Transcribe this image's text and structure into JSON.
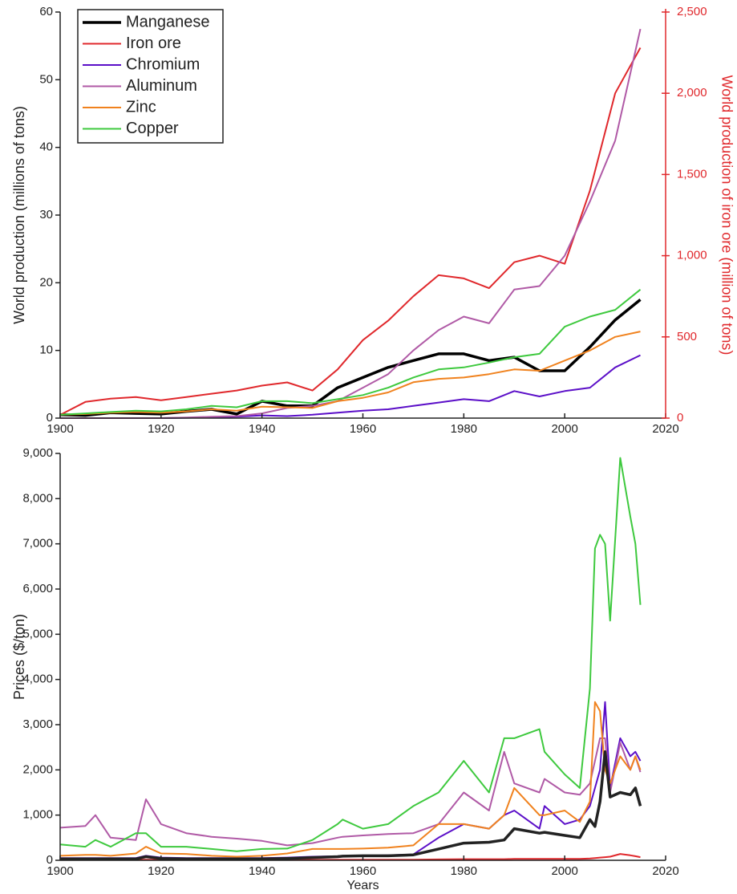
{
  "chart_data": [
    {
      "type": "line",
      "y_label": "World production (millions of tons)",
      "y2_label": "World production of iron ore (million of tons)",
      "x": [
        1900,
        1905,
        1910,
        1915,
        1920,
        1925,
        1930,
        1935,
        1940,
        1945,
        1950,
        1955,
        1960,
        1965,
        1970,
        1975,
        1980,
        1985,
        1990,
        1995,
        2000,
        2005,
        2010,
        2015
      ],
      "xlim": [
        1900,
        2020
      ],
      "xticks": [
        1900,
        1920,
        1940,
        1960,
        1980,
        2000,
        2020
      ],
      "ylim": [
        0,
        60
      ],
      "yticks": [
        0,
        10,
        20,
        30,
        40,
        50,
        60
      ],
      "y2lim": [
        0,
        2500
      ],
      "y2ticks": [
        0,
        500,
        {
          "value": 1000,
          "label": "1,000"
        },
        {
          "value": 1500,
          "label": "1,500"
        },
        {
          "value": 2000,
          "label": "2,000"
        },
        {
          "value": 2500,
          "label": "2,500"
        }
      ],
      "legend": "upper left",
      "series": [
        {
          "name": "Manganese",
          "color": "#000000",
          "width": 3.5,
          "values": [
            0.5,
            0.4,
            0.8,
            0.7,
            0.6,
            1.0,
            1.3,
            0.6,
            2.5,
            1.8,
            1.8,
            4.5,
            6.0,
            7.5,
            8.5,
            9.5,
            9.5,
            8.5,
            9.0,
            7.0,
            7.0,
            10.5,
            14.5,
            17.5
          ]
        },
        {
          "name": "Iron ore",
          "color": "#e0282c",
          "width": 2,
          "axis": "y2",
          "values": [
            20,
            100,
            120,
            130,
            110,
            130,
            150,
            170,
            200,
            220,
            170,
            300,
            480,
            600,
            750,
            880,
            860,
            800,
            960,
            1000,
            950,
            1400,
            2000,
            2280
          ]
        },
        {
          "name": "Chromium",
          "color": "#5b0fc8",
          "width": 2,
          "values": [
            0,
            0,
            0,
            0,
            0,
            0.05,
            0.1,
            0.2,
            0.4,
            0.3,
            0.5,
            0.8,
            1.1,
            1.3,
            1.8,
            2.3,
            2.8,
            2.5,
            4,
            3.2,
            4,
            4.5,
            7.5,
            9.3
          ]
        },
        {
          "name": "Aluminum",
          "color": "#b05aa6",
          "width": 2,
          "values": [
            0,
            0,
            0,
            0,
            0,
            0.1,
            0.2,
            0.3,
            0.7,
            1.5,
            1.8,
            2.5,
            4.5,
            6.5,
            10,
            13,
            15,
            14,
            19,
            19.5,
            24,
            32,
            41,
            57.5
          ]
        },
        {
          "name": "Zinc",
          "color": "#f0821e",
          "width": 2,
          "values": [
            0.5,
            0.6,
            0.8,
            0.9,
            0.8,
            1.0,
            1.3,
            1.1,
            1.7,
            1.6,
            1.5,
            2.5,
            3.0,
            3.8,
            5.3,
            5.8,
            6.0,
            6.5,
            7.2,
            7.0,
            8.5,
            10,
            12,
            12.8
          ]
        },
        {
          "name": "Copper",
          "color": "#3ec93e",
          "width": 2,
          "values": [
            0.5,
            0.7,
            0.9,
            1.1,
            1.0,
            1.3,
            1.8,
            1.6,
            2.5,
            2.5,
            2.2,
            2.8,
            3.4,
            4.5,
            6.0,
            7.2,
            7.5,
            8.2,
            9.0,
            9.5,
            13.5,
            15,
            16,
            19
          ]
        }
      ]
    },
    {
      "type": "line",
      "x_label": "Years",
      "y_label": "Prices ($/ton)",
      "x": [
        1900,
        1905,
        1907,
        1910,
        1915,
        1917,
        1920,
        1925,
        1930,
        1935,
        1940,
        1945,
        1950,
        1955,
        1956,
        1960,
        1965,
        1970,
        1975,
        1980,
        1985,
        1988,
        1990,
        1995,
        1996,
        2000,
        2003,
        2005,
        2006,
        2007,
        2008,
        2009,
        2011,
        2013,
        2014,
        2015
      ],
      "xlim": [
        1900,
        2020
      ],
      "xticks": [
        1900,
        1920,
        1940,
        1960,
        1980,
        2000,
        2020
      ],
      "ylim": [
        0,
        9000
      ],
      "yticks": [
        0,
        {
          "value": 1000,
          "label": "1,000"
        },
        {
          "value": 2000,
          "label": "2,000"
        },
        {
          "value": 3000,
          "label": "3,000"
        },
        {
          "value": 4000,
          "label": "4,000"
        },
        {
          "value": 5000,
          "label": "5,000"
        },
        {
          "value": 6000,
          "label": "6,000"
        },
        {
          "value": 7000,
          "label": "7,000"
        },
        {
          "value": 8000,
          "label": "8,000"
        },
        {
          "value": 9000,
          "label": "9,000"
        }
      ],
      "series": [
        {
          "color": "#e0282c",
          "width": 2,
          "values": [
            10,
            10,
            10,
            10,
            10,
            15,
            10,
            10,
            10,
            10,
            10,
            10,
            10,
            15,
            15,
            15,
            15,
            15,
            20,
            25,
            25,
            25,
            30,
            30,
            30,
            30,
            30,
            40,
            50,
            60,
            70,
            80,
            140,
            110,
            90,
            70
          ]
        },
        {
          "color": "#5b0fc8",
          "width": 2,
          "values": [
            50,
            50,
            50,
            50,
            50,
            100,
            60,
            50,
            50,
            50,
            50,
            60,
            80,
            90,
            100,
            100,
            110,
            130,
            500,
            800,
            700,
            1000,
            1100,
            700,
            1200,
            800,
            900,
            1200,
            1600,
            2000,
            3500,
            1600,
            2700,
            2300,
            2400,
            2200
          ]
        },
        {
          "color": "#b05aa6",
          "width": 2,
          "values": [
            720,
            760,
            1000,
            500,
            450,
            1350,
            800,
            600,
            520,
            480,
            430,
            330,
            380,
            500,
            520,
            550,
            580,
            600,
            800,
            1500,
            1100,
            2400,
            1700,
            1500,
            1800,
            1500,
            1450,
            1700,
            2200,
            2700,
            2700,
            1500,
            2600,
            2000,
            2300,
            1950
          ]
        },
        {
          "color": "#f0821e",
          "width": 2,
          "values": [
            100,
            120,
            120,
            100,
            150,
            300,
            150,
            140,
            100,
            80,
            100,
            150,
            250,
            250,
            250,
            260,
            280,
            330,
            800,
            800,
            700,
            1000,
            1600,
            1000,
            1000,
            1100,
            850,
            1300,
            3500,
            3300,
            2000,
            1700,
            2300,
            2000,
            2300,
            2000
          ]
        },
        {
          "color": "#3ec93e",
          "width": 2,
          "values": [
            350,
            300,
            450,
            300,
            600,
            600,
            300,
            300,
            250,
            200,
            250,
            260,
            450,
            800,
            900,
            700,
            800,
            1200,
            1500,
            2200,
            1500,
            2700,
            2700,
            2900,
            2400,
            1900,
            1600,
            3800,
            6900,
            7200,
            7000,
            5300,
            8900,
            7600,
            7000,
            5650
          ]
        },
        {
          "color": "#222222",
          "width": 3.5,
          "values": [
            30,
            30,
            30,
            30,
            30,
            80,
            40,
            30,
            30,
            30,
            30,
            40,
            60,
            80,
            90,
            100,
            100,
            120,
            250,
            380,
            400,
            450,
            700,
            600,
            620,
            550,
            500,
            900,
            750,
            1300,
            2400,
            1400,
            1500,
            1450,
            1600,
            1200
          ]
        }
      ]
    }
  ]
}
